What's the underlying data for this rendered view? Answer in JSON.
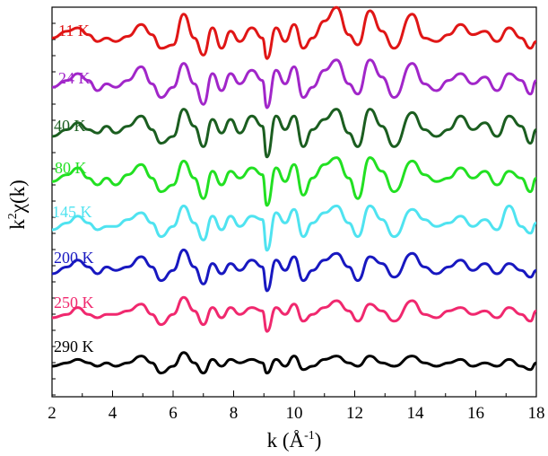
{
  "chart_data": {
    "type": "line",
    "xlabel_main": "k (Å",
    "xlabel_sup": "-1",
    "xlabel_close": ")",
    "ylabel_k": "k",
    "ylabel_sup": "2",
    "ylabel_rest": "χ(k)",
    "xlim": [
      2,
      18
    ],
    "x_ticks": [
      2,
      4,
      6,
      8,
      10,
      12,
      14,
      16,
      18
    ],
    "x_tick_labels": [
      "2",
      "4",
      "6",
      "8",
      "10",
      "12",
      "14",
      "16",
      "18"
    ],
    "y_ticks_visible_labels": false,
    "grid": false,
    "legend": "inline labels at left of each curve",
    "offset_note_visible": false,
    "series": [
      {
        "name": "11 K",
        "color": "#e01616",
        "x": [
          2.0,
          2.5,
          2.85,
          3.2,
          3.5,
          3.8,
          4.1,
          4.5,
          4.95,
          5.3,
          5.6,
          6.0,
          6.35,
          6.7,
          7.0,
          7.3,
          7.6,
          7.9,
          8.2,
          8.6,
          8.95,
          9.1,
          9.4,
          9.7,
          10.0,
          10.3,
          10.6,
          11.0,
          11.4,
          11.8,
          12.1,
          12.5,
          12.9,
          13.3,
          13.9,
          14.3,
          14.7,
          15.1,
          15.5,
          15.9,
          16.3,
          16.7,
          17.1,
          17.5,
          17.8,
          18.0
        ],
        "y": [
          0.2,
          0.4,
          0.5,
          0.3,
          0.1,
          0.2,
          0.1,
          0.25,
          0.6,
          0.3,
          -0.1,
          0.0,
          0.9,
          0.2,
          -0.3,
          0.5,
          -0.1,
          0.4,
          0.1,
          0.5,
          0.2,
          -0.4,
          0.5,
          0.1,
          0.6,
          -0.1,
          0.2,
          0.7,
          1.1,
          0.3,
          0.0,
          1.0,
          0.4,
          -0.1,
          0.9,
          0.2,
          0.1,
          0.3,
          0.6,
          0.3,
          0.4,
          0.1,
          0.5,
          0.2,
          -0.1,
          0.1
        ]
      },
      {
        "name": "24 K",
        "color": "#a126c9",
        "x": [
          2.0,
          2.5,
          2.85,
          3.2,
          3.5,
          3.8,
          4.1,
          4.5,
          4.95,
          5.3,
          5.6,
          6.0,
          6.35,
          6.7,
          7.0,
          7.3,
          7.6,
          7.9,
          8.2,
          8.6,
          8.95,
          9.1,
          9.4,
          9.7,
          10.0,
          10.3,
          10.6,
          11.0,
          11.4,
          11.8,
          12.1,
          12.5,
          12.9,
          13.3,
          13.9,
          14.3,
          14.7,
          15.1,
          15.5,
          15.9,
          16.3,
          16.7,
          17.1,
          17.5,
          17.8,
          18.0
        ],
        "y": [
          0.1,
          0.3,
          0.5,
          0.3,
          0.0,
          0.2,
          0.1,
          0.3,
          0.7,
          0.2,
          -0.2,
          0.1,
          0.8,
          0.2,
          -0.4,
          0.5,
          0.0,
          0.5,
          0.2,
          0.6,
          0.3,
          -0.5,
          0.6,
          0.2,
          0.7,
          -0.2,
          0.1,
          0.6,
          0.9,
          0.2,
          -0.1,
          0.9,
          0.4,
          -0.2,
          0.8,
          0.2,
          0.0,
          0.3,
          0.5,
          0.2,
          0.4,
          0.0,
          0.5,
          0.3,
          -0.1,
          0.3
        ]
      },
      {
        "name": "40 K",
        "color": "#1b5e20",
        "x": [
          2.0,
          2.5,
          2.85,
          3.2,
          3.5,
          3.8,
          4.1,
          4.5,
          4.95,
          5.3,
          5.6,
          6.0,
          6.35,
          6.7,
          7.0,
          7.3,
          7.6,
          7.9,
          8.2,
          8.6,
          8.95,
          9.1,
          9.4,
          9.7,
          10.0,
          10.3,
          10.6,
          11.0,
          11.4,
          11.8,
          12.1,
          12.5,
          12.9,
          13.3,
          13.9,
          14.3,
          14.7,
          15.1,
          15.5,
          15.9,
          16.3,
          16.7,
          17.1,
          17.5,
          17.8,
          18.0
        ],
        "y": [
          0.0,
          0.2,
          0.4,
          0.2,
          0.1,
          0.3,
          0.1,
          0.3,
          0.6,
          0.2,
          -0.2,
          0.0,
          0.8,
          0.3,
          -0.3,
          0.5,
          0.1,
          0.5,
          0.1,
          0.6,
          0.3,
          -0.6,
          0.6,
          0.2,
          0.6,
          -0.3,
          0.2,
          0.5,
          0.8,
          0.1,
          -0.3,
          0.8,
          0.3,
          -0.3,
          0.7,
          0.2,
          0.0,
          0.2,
          0.6,
          0.2,
          0.4,
          0.0,
          0.6,
          0.3,
          -0.2,
          0.2
        ]
      },
      {
        "name": "80 K",
        "color": "#22e022",
        "x": [
          2.0,
          2.5,
          2.85,
          3.2,
          3.5,
          3.8,
          4.1,
          4.5,
          4.95,
          5.3,
          5.6,
          6.0,
          6.35,
          6.7,
          7.0,
          7.3,
          7.6,
          7.9,
          8.2,
          8.6,
          8.95,
          9.1,
          9.4,
          9.7,
          10.0,
          10.3,
          10.6,
          11.0,
          11.4,
          11.8,
          12.1,
          12.5,
          12.9,
          13.3,
          13.9,
          14.3,
          14.7,
          15.1,
          15.5,
          15.9,
          16.3,
          16.7,
          17.1,
          17.5,
          17.8,
          18.0
        ],
        "y": [
          0.1,
          0.3,
          0.5,
          0.2,
          0.0,
          0.2,
          0.0,
          0.3,
          0.6,
          0.2,
          -0.2,
          0.0,
          0.7,
          0.2,
          -0.4,
          0.4,
          0.0,
          0.4,
          0.2,
          0.5,
          0.3,
          -0.6,
          0.5,
          0.1,
          0.6,
          -0.3,
          0.2,
          0.6,
          0.8,
          0.2,
          -0.4,
          0.8,
          0.4,
          -0.2,
          0.7,
          0.3,
          0.1,
          0.2,
          0.5,
          0.2,
          0.4,
          0.0,
          0.4,
          0.2,
          -0.2,
          0.2
        ]
      },
      {
        "name": "145 K",
        "color": "#4fe3f0",
        "x": [
          2.0,
          2.5,
          2.85,
          3.2,
          3.5,
          3.8,
          4.1,
          4.5,
          4.95,
          5.3,
          5.6,
          6.0,
          6.35,
          6.7,
          7.0,
          7.3,
          7.6,
          7.9,
          8.2,
          8.6,
          8.95,
          9.1,
          9.4,
          9.7,
          10.0,
          10.3,
          10.6,
          11.0,
          11.4,
          11.8,
          12.1,
          12.5,
          12.9,
          13.3,
          13.9,
          14.3,
          14.7,
          15.1,
          15.5,
          15.9,
          16.3,
          16.7,
          17.1,
          17.5,
          17.8,
          18.0
        ],
        "y": [
          0.0,
          0.2,
          0.4,
          0.2,
          0.0,
          0.1,
          0.1,
          0.3,
          0.5,
          0.2,
          -0.2,
          0.1,
          0.7,
          0.2,
          -0.3,
          0.4,
          0.0,
          0.4,
          0.1,
          0.4,
          0.3,
          -0.6,
          0.5,
          0.2,
          0.6,
          -0.2,
          0.2,
          0.5,
          0.7,
          0.2,
          -0.2,
          0.7,
          0.3,
          -0.2,
          0.6,
          0.3,
          0.1,
          0.2,
          0.4,
          0.1,
          0.3,
          0.0,
          0.7,
          0.1,
          -0.1,
          0.2
        ]
      },
      {
        "name": "200 K",
        "color": "#1818c0",
        "x": [
          2.0,
          2.5,
          2.85,
          3.2,
          3.5,
          3.8,
          4.1,
          4.5,
          4.95,
          5.3,
          5.6,
          6.0,
          6.35,
          6.7,
          7.0,
          7.3,
          7.6,
          7.9,
          8.2,
          8.6,
          8.95,
          9.1,
          9.4,
          9.7,
          10.0,
          10.3,
          10.6,
          11.0,
          11.4,
          11.8,
          12.1,
          12.5,
          12.9,
          13.3,
          13.9,
          14.3,
          14.7,
          15.1,
          15.5,
          15.9,
          16.3,
          16.7,
          17.1,
          17.5,
          17.8,
          18.0
        ],
        "y": [
          0.0,
          0.2,
          0.4,
          0.2,
          0.0,
          0.2,
          0.1,
          0.2,
          0.5,
          0.2,
          -0.2,
          0.1,
          0.7,
          0.2,
          -0.3,
          0.3,
          0.0,
          0.3,
          0.1,
          0.4,
          0.2,
          -0.5,
          0.4,
          0.1,
          0.5,
          -0.2,
          0.1,
          0.4,
          0.6,
          0.2,
          -0.2,
          0.5,
          0.3,
          -0.1,
          0.6,
          0.2,
          0.0,
          0.2,
          0.4,
          0.1,
          0.3,
          0.0,
          0.3,
          0.1,
          -0.1,
          0.1
        ]
      },
      {
        "name": "250 K",
        "color": "#f0286e",
        "x": [
          2.0,
          2.5,
          2.85,
          3.2,
          3.5,
          3.8,
          4.1,
          4.5,
          4.95,
          5.3,
          5.6,
          6.0,
          6.35,
          6.7,
          7.0,
          7.3,
          7.6,
          7.9,
          8.2,
          8.6,
          8.95,
          9.1,
          9.4,
          9.7,
          10.0,
          10.3,
          10.6,
          11.0,
          11.4,
          11.8,
          12.1,
          12.5,
          12.9,
          13.3,
          13.9,
          14.3,
          14.7,
          15.1,
          15.5,
          15.9,
          16.3,
          16.7,
          17.1,
          17.5,
          17.8,
          18.0
        ],
        "y": [
          0.0,
          0.1,
          0.3,
          0.1,
          0.0,
          0.1,
          0.1,
          0.2,
          0.4,
          0.1,
          -0.2,
          0.1,
          0.6,
          0.2,
          -0.2,
          0.3,
          0.0,
          0.3,
          0.1,
          0.3,
          0.2,
          -0.4,
          0.3,
          0.1,
          0.4,
          -0.1,
          0.1,
          0.3,
          0.5,
          0.2,
          -0.1,
          0.4,
          0.2,
          -0.1,
          0.5,
          0.1,
          0.0,
          0.2,
          0.3,
          0.1,
          0.2,
          0.0,
          0.3,
          0.1,
          -0.1,
          0.2
        ]
      },
      {
        "name": "290 K",
        "color": "#000000",
        "x": [
          2.0,
          2.5,
          2.85,
          3.2,
          3.5,
          3.8,
          4.1,
          4.5,
          4.95,
          5.3,
          5.6,
          6.0,
          6.35,
          6.7,
          7.0,
          7.3,
          7.6,
          7.9,
          8.2,
          8.6,
          8.95,
          9.1,
          9.4,
          9.7,
          10.0,
          10.3,
          10.6,
          11.0,
          11.4,
          11.8,
          12.1,
          12.5,
          12.9,
          13.3,
          13.9,
          14.3,
          14.7,
          15.1,
          15.5,
          15.9,
          16.3,
          16.7,
          17.1,
          17.5,
          17.8,
          18.0
        ],
        "y": [
          0.0,
          0.1,
          0.2,
          0.1,
          0.0,
          0.1,
          0.0,
          0.1,
          0.3,
          0.1,
          -0.2,
          0.0,
          0.4,
          0.1,
          -0.2,
          0.2,
          0.0,
          0.2,
          0.1,
          0.2,
          0.1,
          -0.2,
          0.2,
          0.0,
          0.3,
          -0.1,
          0.0,
          0.2,
          0.3,
          0.1,
          0.0,
          0.3,
          0.1,
          0.0,
          0.3,
          0.1,
          0.0,
          0.1,
          0.2,
          0.0,
          0.1,
          0.0,
          0.2,
          0.0,
          -0.1,
          0.1
        ]
      }
    ]
  }
}
